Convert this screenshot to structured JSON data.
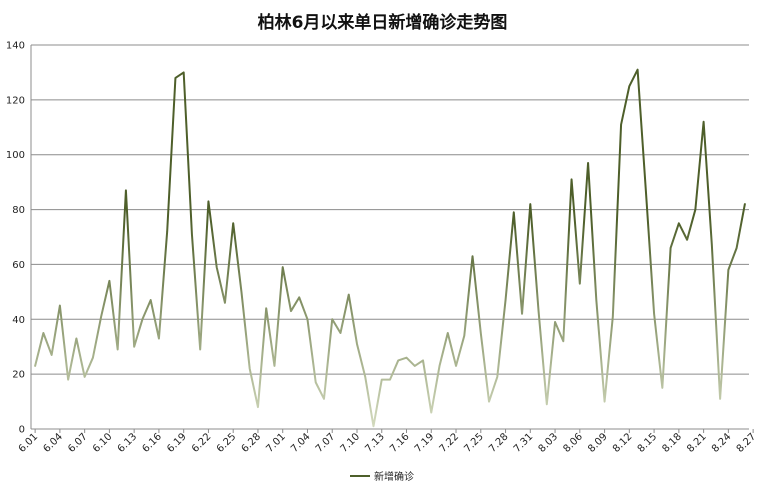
{
  "chart_data": {
    "type": "line",
    "title": "柏林6月以来单日新增确诊走势图",
    "xlabel": "",
    "ylabel": "",
    "ylim": [
      0,
      140
    ],
    "yticks": [
      0,
      20,
      40,
      60,
      80,
      100,
      120,
      140
    ],
    "grid": true,
    "legend_position": "bottom",
    "x_tick_labels": [
      "6.01",
      "6.04",
      "6.07",
      "6.10",
      "6.13",
      "6.16",
      "6.19",
      "6.22",
      "6.25",
      "6.28",
      "7.01",
      "7.04",
      "7.07",
      "7.10",
      "7.13",
      "7.16",
      "7.19",
      "7.22",
      "7.25",
      "7.28",
      "7.31",
      "8.03",
      "8.06",
      "8.09",
      "8.12",
      "8.15",
      "8.18",
      "8.21",
      "8.24",
      "8.27"
    ],
    "x_tick_every": 3,
    "series": [
      {
        "name": "新增确诊",
        "color": "#4e5f2a",
        "low_color": "#d4dbbf",
        "values": [
          23,
          35,
          27,
          45,
          18,
          33,
          19,
          26,
          41,
          54,
          29,
          87,
          30,
          40,
          47,
          33,
          72,
          128,
          130,
          71,
          29,
          83,
          59,
          46,
          75,
          50,
          22,
          8,
          44,
          23,
          59,
          43,
          48,
          40,
          17,
          11,
          40,
          35,
          49,
          31,
          19,
          1,
          18,
          18,
          25,
          26,
          23,
          25,
          6,
          23,
          35,
          23,
          34,
          63,
          35,
          10,
          19,
          47,
          79,
          42,
          82,
          43,
          9,
          39,
          32,
          91,
          53,
          97,
          47,
          10,
          41,
          111,
          125,
          131,
          87,
          42,
          15,
          66,
          75,
          69,
          80,
          112,
          67,
          11,
          58,
          66,
          82
        ]
      }
    ]
  }
}
